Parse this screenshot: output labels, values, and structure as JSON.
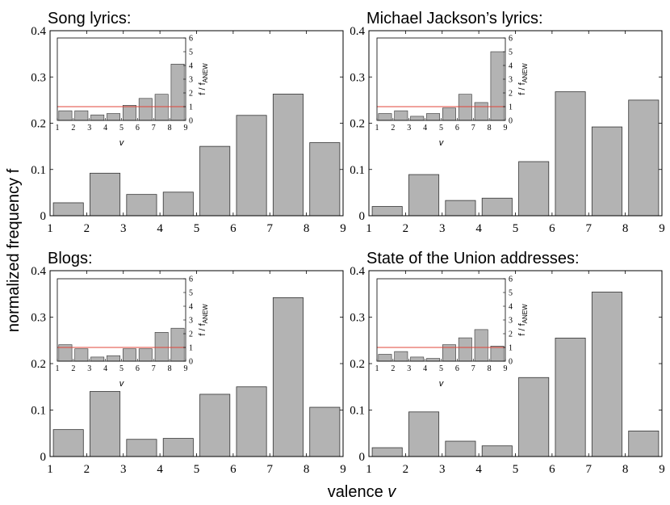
{
  "figure": {
    "xlabel_text": "valence ",
    "xlabel_var": "v",
    "ylabel": "normalized frequency f"
  },
  "colors": {
    "bar": "#b3b3b3",
    "bar_edge": "#333333",
    "ref_line": "#e0443a",
    "axes": "#000000"
  },
  "chart_data": [
    {
      "type": "bar",
      "title": "Song lyrics:",
      "categories": [
        "1-2",
        "2-3",
        "3-4",
        "4-5",
        "5-6",
        "6-7",
        "7-8",
        "8-9"
      ],
      "values": [
        0.028,
        0.092,
        0.046,
        0.051,
        0.15,
        0.217,
        0.263,
        0.158
      ],
      "xlim": [
        1,
        9
      ],
      "ylim": [
        0,
        0.4
      ],
      "xticks": [
        1,
        2,
        3,
        4,
        5,
        6,
        7,
        8,
        9
      ],
      "yticks": [
        0,
        0.1,
        0.2,
        0.3,
        0.4
      ],
      "ytick_labels": [
        "0",
        "0.1",
        "0.2",
        "0.3",
        "0.4"
      ],
      "inset": {
        "type": "bar",
        "values": [
          0.7,
          0.7,
          0.4,
          0.5,
          1.1,
          1.6,
          1.9,
          4.1
        ],
        "ylim": [
          0,
          6
        ],
        "yticks": [
          0,
          1,
          2,
          3,
          4,
          5,
          6
        ],
        "reference_line": 1,
        "xlabel": "v",
        "ylabel_main": "f / f",
        "ylabel_sub": "ANEW"
      }
    },
    {
      "type": "bar",
      "title": "Michael Jackson’s lyrics:",
      "categories": [
        "1-2",
        "2-3",
        "3-4",
        "4-5",
        "5-6",
        "6-7",
        "7-8",
        "8-9"
      ],
      "values": [
        0.02,
        0.089,
        0.033,
        0.038,
        0.117,
        0.268,
        0.192,
        0.25
      ],
      "xlim": [
        1,
        9
      ],
      "ylim": [
        0,
        0.4
      ],
      "xticks": [
        1,
        2,
        3,
        4,
        5,
        6,
        7,
        8,
        9
      ],
      "yticks": [
        0,
        0.1,
        0.2,
        0.3,
        0.4
      ],
      "ytick_labels": [
        "0",
        "0.1",
        "0.2",
        "0.3",
        "0.4"
      ],
      "inset": {
        "type": "bar",
        "values": [
          0.5,
          0.7,
          0.3,
          0.5,
          0.9,
          1.9,
          1.3,
          5.0
        ],
        "ylim": [
          0,
          6
        ],
        "yticks": [
          0,
          1,
          2,
          3,
          4,
          5,
          6
        ],
        "reference_line": 1,
        "xlabel": "v",
        "ylabel_main": "f / f",
        "ylabel_sub": "ANEW"
      }
    },
    {
      "type": "bar",
      "title": "Blogs:",
      "categories": [
        "1-2",
        "2-3",
        "3-4",
        "4-5",
        "5-6",
        "6-7",
        "7-8",
        "8-9"
      ],
      "values": [
        0.058,
        0.14,
        0.037,
        0.039,
        0.134,
        0.15,
        0.342,
        0.106
      ],
      "xlim": [
        1,
        9
      ],
      "ylim": [
        0,
        0.4
      ],
      "xticks": [
        1,
        2,
        3,
        4,
        5,
        6,
        7,
        8,
        9
      ],
      "yticks": [
        0,
        0.1,
        0.2,
        0.3,
        0.4
      ],
      "ytick_labels": [
        "0",
        "0.1",
        "0.2",
        "0.3",
        "0.4"
      ],
      "inset": {
        "type": "bar",
        "values": [
          1.2,
          0.9,
          0.3,
          0.4,
          0.9,
          0.9,
          2.1,
          2.4
        ],
        "ylim": [
          0,
          6
        ],
        "yticks": [
          0,
          1,
          2,
          3,
          4,
          5,
          6
        ],
        "reference_line": 1,
        "xlabel": "v",
        "ylabel_main": "f / f",
        "ylabel_sub": "ANEW"
      }
    },
    {
      "type": "bar",
      "title": "State of the Union addresses:",
      "categories": [
        "1-2",
        "2-3",
        "3-4",
        "4-5",
        "5-6",
        "6-7",
        "7-8",
        "8-9"
      ],
      "values": [
        0.019,
        0.096,
        0.033,
        0.023,
        0.17,
        0.255,
        0.354,
        0.055
      ],
      "xlim": [
        1,
        9
      ],
      "ylim": [
        0,
        0.4
      ],
      "xticks": [
        1,
        2,
        3,
        4,
        5,
        6,
        7,
        8,
        9
      ],
      "yticks": [
        0,
        0.1,
        0.2,
        0.3,
        0.4
      ],
      "ytick_labels": [
        "0",
        "0.1",
        "0.2",
        "0.3",
        "0.4"
      ],
      "inset": {
        "type": "bar",
        "values": [
          0.5,
          0.7,
          0.3,
          0.2,
          1.2,
          1.7,
          2.3,
          1.1
        ],
        "ylim": [
          0,
          6
        ],
        "yticks": [
          0,
          1,
          2,
          3,
          4,
          5,
          6
        ],
        "reference_line": 1,
        "xlabel": "v",
        "ylabel_main": "f / f",
        "ylabel_sub": "ANEW"
      }
    }
  ]
}
